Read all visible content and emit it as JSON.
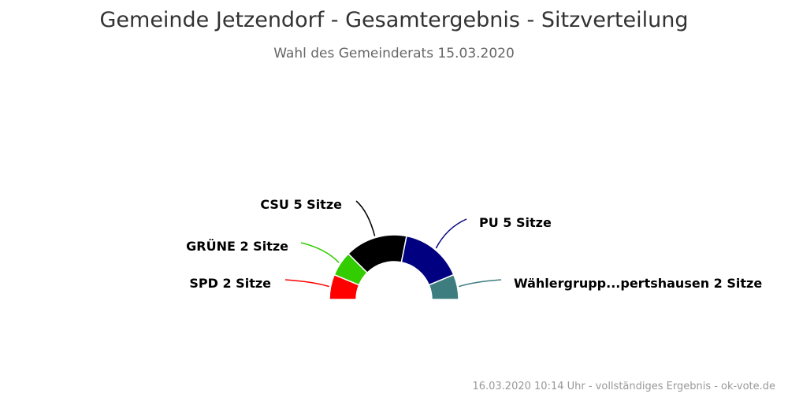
{
  "chart_data": {
    "type": "pie",
    "title": "Gemeinde Jetzendorf - Gesamtergebnis - Sitzverteilung",
    "subtitle": "Wahl des Gemeinderats 15.03.2020",
    "unit": "Sitze",
    "series": [
      {
        "name": "SPD",
        "value": 2,
        "color": "#ff0000",
        "label": "SPD 2 Sitze"
      },
      {
        "name": "GRÜNE",
        "value": 2,
        "color": "#33cc00",
        "label": "GRÜNE 2 Sitze"
      },
      {
        "name": "CSU",
        "value": 5,
        "color": "#000000",
        "label": "CSU 5 Sitze"
      },
      {
        "name": "PU",
        "value": 5,
        "color": "#000080",
        "label": "PU 5 Sitze"
      },
      {
        "name": "Wählergrupp...pertshausen",
        "value": 2,
        "color": "#3d7d80",
        "label": "Wählergrupp...pertshausen 2 Sitze"
      }
    ]
  },
  "footer": {
    "credits": "16.03.2020 10:14 Uhr - vollständiges Ergebnis - ok-vote.de"
  }
}
